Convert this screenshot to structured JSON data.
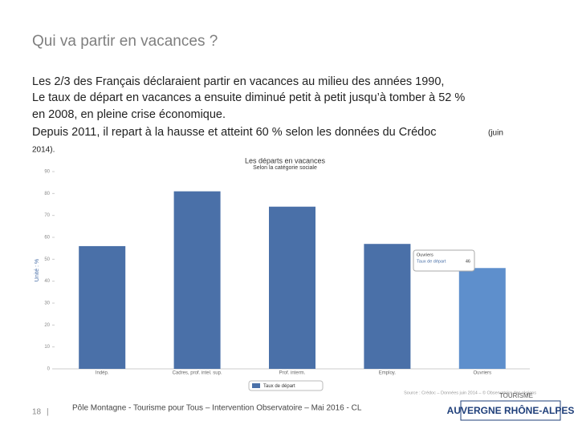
{
  "slide_title": "Qui va partir en vacances ?",
  "body": {
    "lines": [
      "Les 2/3 des Français déclaraient partir en vacances au milieu des années 1990,",
      "Le taux de départ en vacances a ensuite diminué petit à petit jusqu’à tomber à 52 %",
      "en 2008, en pleine crise économique.",
      "Depuis 2011, il repart à la hausse et atteint 60 % selon les données du Crédoc"
    ],
    "note_start": "(juin",
    "note_end": "2014)."
  },
  "chart_data": {
    "type": "bar",
    "title": "Les départs en vacances",
    "subtitle": "Selon la catégorie sociale",
    "ylabel": "Unité : %",
    "categories": [
      "Indép.",
      "Cadres, prof. intel. sup.",
      "Prof. interm.",
      "Employ.",
      "Ouvriers"
    ],
    "series": [
      {
        "name": "Taux de départ",
        "color": "#4a70a8",
        "highlight_color": "#5e8fcc",
        "values": [
          56,
          81,
          74,
          57,
          46
        ]
      }
    ],
    "highlight_index": 4,
    "ylim": [
      0,
      90
    ],
    "yticks": [
      0,
      10,
      20,
      30,
      40,
      50,
      60,
      70,
      80,
      90
    ],
    "grid": false,
    "source": "Source : Crédoc – Données juin 2014 – © Observatoire des régions"
  },
  "footer": {
    "page": "18",
    "text": "Pôle Montagne - Tourisme pour Tous – Intervention Observatoire – Mai 2016 - CL",
    "logo_top": "TOURISME",
    "logo_main": "AUVERGNE RHÔNE-ALPES"
  }
}
